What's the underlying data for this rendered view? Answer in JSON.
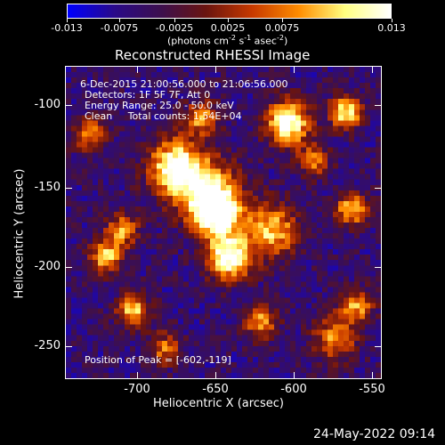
{
  "colorbar": {
    "ticks": [
      "-0.013",
      "-0.0075",
      "-0.0025",
      "0.0025",
      "0.0075",
      "0.013"
    ],
    "unit_label": "(photons cm",
    "unit_sup1": "-2",
    "unit_mid": " s",
    "unit_sup2": "-1",
    "unit_mid2": " asec",
    "unit_sup3": "-2",
    "unit_close": ")",
    "colors": [
      "#0000ff",
      "#2a0a8a",
      "#3d1050",
      "#6b1510",
      "#c83a00",
      "#ff8c00",
      "#ffff80",
      "#ffffff"
    ]
  },
  "title": "Reconstructed RHESSI Image",
  "annotations": {
    "line1": "6-Dec-2015 21:00:56.000 to 21:06:56.000",
    "line2": "Detectors: 1F 5F 7F, Att 0",
    "line3": "Energy Range: 25.0 - 50.0 keV",
    "line4": "Clean     Total counts: 1.54E+04",
    "peak": "Position of Peak = [-602,-119]"
  },
  "axes": {
    "xlabel": "Heliocentric X (arcsec)",
    "ylabel": "Heliocentric Y (arcsec)",
    "xticks": [
      "-700",
      "-650",
      "-600",
      "-550"
    ],
    "yticks": [
      "-100",
      "-150",
      "-200",
      "-250"
    ]
  },
  "footer": {
    "date": "24-May-2022 09:14"
  }
}
